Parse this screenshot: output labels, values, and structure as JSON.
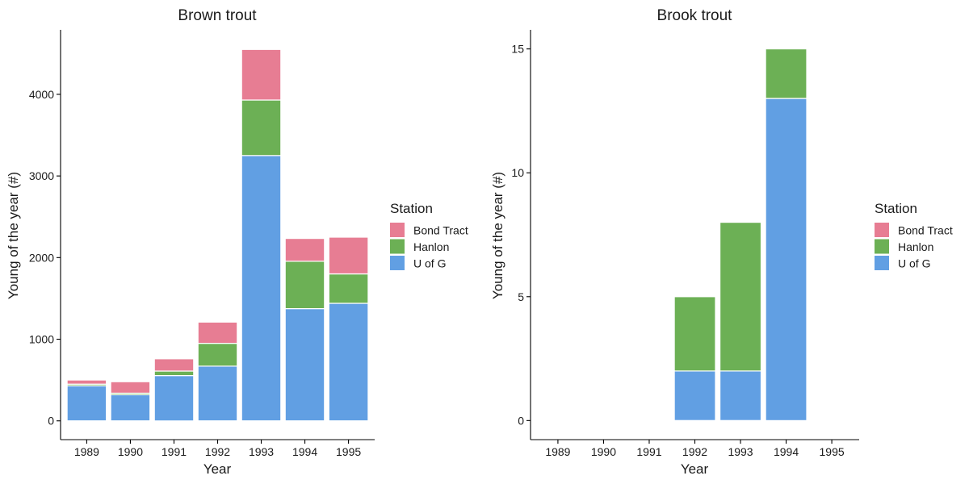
{
  "chart_data": [
    {
      "type": "bar",
      "stacked": true,
      "title": "Brown trout",
      "xlabel": "Year",
      "ylabel": "Young of the year (#)",
      "categories": [
        "1989",
        "1990",
        "1991",
        "1992",
        "1993",
        "1994",
        "1995"
      ],
      "ylim": [
        -230,
        4790
      ],
      "yticks": [
        0,
        1000,
        2000,
        3000,
        4000
      ],
      "series": [
        {
          "name": "U of G",
          "color": "#619fe3",
          "values": [
            430,
            320,
            555,
            670,
            3250,
            1375,
            1440
          ]
        },
        {
          "name": "Hanlon",
          "color": "#6cb055",
          "values": [
            20,
            20,
            55,
            280,
            680,
            580,
            360
          ]
        },
        {
          "name": "Bond Tract",
          "color": "#e77d93",
          "values": [
            50,
            140,
            150,
            260,
            620,
            280,
            450
          ]
        }
      ],
      "legend": {
        "title": "Station",
        "position": "right",
        "entries": [
          "Bond Tract",
          "Hanlon",
          "U of G"
        ]
      },
      "grid": false
    },
    {
      "type": "bar",
      "stacked": true,
      "title": "Brook trout",
      "xlabel": "Year",
      "ylabel": "Young of the year (#)",
      "categories": [
        "1989",
        "1990",
        "1991",
        "1992",
        "1993",
        "1994",
        "1995"
      ],
      "ylim": [
        -0.77,
        15.77
      ],
      "yticks": [
        0,
        5,
        10,
        15
      ],
      "series": [
        {
          "name": "U of G",
          "color": "#619fe3",
          "values": [
            0,
            0,
            0,
            2,
            2,
            13,
            0
          ]
        },
        {
          "name": "Hanlon",
          "color": "#6cb055",
          "values": [
            0,
            0,
            0,
            3,
            6,
            2,
            0
          ]
        },
        {
          "name": "Bond Tract",
          "color": "#e77d93",
          "values": [
            0,
            0,
            0,
            0,
            0,
            0,
            0
          ]
        }
      ],
      "legend": {
        "title": "Station",
        "position": "right",
        "entries": [
          "Bond Tract",
          "Hanlon",
          "U of G"
        ]
      },
      "grid": false
    }
  ]
}
